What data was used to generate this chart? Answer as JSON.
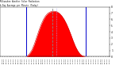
{
  "title_line1": "Milwaukee Weather Solar Radiation",
  "title_line2": "& Day Average",
  "title_line3": "per Minute",
  "title_line4": "(Today)",
  "bg_color": "#ffffff",
  "fill_color": "#ff0000",
  "line_color": "#cc0000",
  "blue_line_color": "#0000cc",
  "dashed_line1_color": "#888888",
  "dashed_line2_color": "#aaaaff",
  "ylim": [
    0,
    800
  ],
  "xlim": [
    0,
    1440
  ],
  "sunrise_x": 345,
  "sunset_x": 1125,
  "current_x": 690,
  "current_x2": 735,
  "solar_data_x": [
    0,
    60,
    120,
    180,
    240,
    300,
    330,
    345,
    360,
    390,
    420,
    450,
    480,
    510,
    540,
    570,
    600,
    630,
    660,
    690,
    720,
    750,
    780,
    810,
    840,
    870,
    900,
    930,
    960,
    990,
    1020,
    1050,
    1080,
    1110,
    1125,
    1140,
    1200,
    1260,
    1320,
    1380,
    1440
  ],
  "solar_data_y": [
    0,
    0,
    0,
    0,
    0,
    0,
    0,
    2,
    10,
    50,
    110,
    200,
    310,
    420,
    520,
    600,
    660,
    700,
    720,
    730,
    730,
    720,
    695,
    655,
    600,
    530,
    445,
    350,
    250,
    160,
    90,
    40,
    12,
    3,
    1,
    0,
    0,
    0,
    0,
    0,
    0
  ],
  "ytick_positions": [
    0,
    100,
    200,
    300,
    400,
    500,
    600,
    700,
    800
  ],
  "ytick_labels": [
    "0",
    "1",
    "2",
    "3",
    "4",
    "5",
    "6",
    "7",
    "8"
  ]
}
